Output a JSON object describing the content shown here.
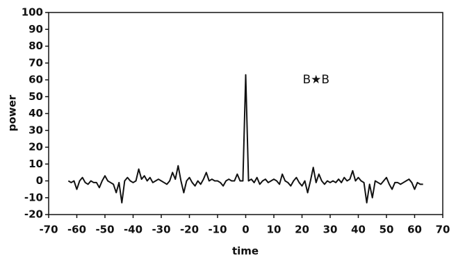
{
  "chart_data": {
    "type": "line",
    "xlabel": "time",
    "ylabel": "power",
    "annotation": "B★B",
    "x": [
      -63,
      -62,
      -61,
      -60,
      -59,
      -58,
      -57,
      -56,
      -55,
      -54,
      -53,
      -52,
      -51,
      -50,
      -49,
      -48,
      -47,
      -46,
      -45,
      -44,
      -43,
      -42,
      -41,
      -40,
      -39,
      -38,
      -37,
      -36,
      -35,
      -34,
      -33,
      -32,
      -31,
      -30,
      -29,
      -28,
      -27,
      -26,
      -25,
      -24,
      -23,
      -22,
      -21,
      -20,
      -19,
      -18,
      -17,
      -16,
      -15,
      -14,
      -13,
      -12,
      -11,
      -10,
      -9,
      -8,
      -7,
      -6,
      -5,
      -4,
      -3,
      -2,
      -1,
      0,
      1,
      2,
      3,
      4,
      5,
      6,
      7,
      8,
      9,
      10,
      11,
      12,
      13,
      14,
      15,
      16,
      17,
      18,
      19,
      20,
      21,
      22,
      23,
      24,
      25,
      26,
      27,
      28,
      29,
      30,
      31,
      32,
      33,
      34,
      35,
      36,
      37,
      38,
      39,
      40,
      41,
      42,
      43,
      44,
      45,
      46,
      47,
      48,
      49,
      50,
      51,
      52,
      53,
      54,
      55,
      56,
      57,
      58,
      59,
      60,
      61,
      62,
      63
    ],
    "values": [
      0,
      -1,
      0,
      -5,
      0,
      2,
      -1,
      -2,
      0,
      -1,
      -1,
      -4,
      0,
      3,
      0,
      -1,
      -2,
      -7,
      -1,
      -13,
      0,
      2,
      0,
      -1,
      0,
      7,
      1,
      3,
      0,
      2,
      -1,
      0,
      1,
      0,
      -1,
      -2,
      0,
      5,
      1,
      9,
      0,
      -7,
      0,
      2,
      -1,
      -3,
      0,
      -2,
      1,
      5,
      0,
      1,
      0,
      0,
      -1,
      -3,
      0,
      1,
      0,
      0,
      4,
      0,
      0,
      63,
      0,
      1,
      -1,
      2,
      -2,
      0,
      1,
      -1,
      0,
      1,
      0,
      -2,
      4,
      0,
      -1,
      -3,
      0,
      2,
      -1,
      -3,
      0,
      -7,
      0,
      8,
      -1,
      4,
      0,
      -2,
      0,
      -1,
      0,
      -1,
      1,
      -1,
      2,
      0,
      1,
      6,
      0,
      2,
      0,
      -1,
      -13,
      -2,
      -10,
      0,
      -1,
      -2,
      0,
      2,
      -2,
      -5,
      -1,
      -1,
      -2,
      -1,
      0,
      1,
      -1,
      -5,
      -1,
      -2,
      -2
    ],
    "color": "#111111",
    "xlim": [
      -70,
      70
    ],
    "xticks": [
      -70,
      -60,
      -50,
      -40,
      -30,
      -20,
      -10,
      0,
      10,
      20,
      30,
      40,
      50,
      60,
      70
    ],
    "ylim": [
      -20,
      100
    ],
    "yticks": [
      -20,
      -10,
      0,
      10,
      20,
      30,
      40,
      50,
      60,
      70,
      80,
      90,
      100
    ],
    "annotation_x": 25,
    "annotation_y": 60
  }
}
